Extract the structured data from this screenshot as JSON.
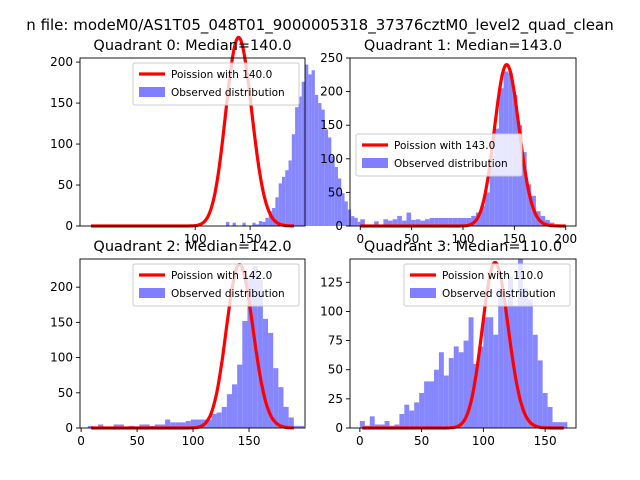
{
  "suptitle": "n file: modeM0/AS1T05_048T01_9000005318_37376cztM0_level2_quad_clean",
  "colors": {
    "poisson": "#ff0000",
    "observed": "#7f7fff"
  },
  "chart_data": [
    {
      "type": "bar",
      "title": "Quadrant 0: Median=140.0",
      "legend": [
        "Poission with 140.0",
        "Observed distribution"
      ],
      "legend_placement": "top-right",
      "xlim": [
        -5,
        200
      ],
      "ylim": [
        0,
        205
      ],
      "xticks": [
        100,
        150
      ],
      "yticks": [
        0,
        50,
        100,
        150,
        200
      ],
      "poisson_mu": 140,
      "poisson_peak": 230,
      "histogram": {
        "bin_start": 65,
        "bin_width": 3,
        "counts": [
          0,
          0,
          0,
          0,
          0,
          0,
          0,
          0,
          0,
          0,
          0,
          0,
          0,
          0,
          0,
          0,
          0,
          0,
          0,
          0,
          0,
          5,
          0,
          4,
          0,
          0,
          4,
          0,
          0,
          4,
          2,
          6,
          5,
          10,
          18,
          22,
          35,
          52,
          60,
          68,
          80,
          112,
          145,
          158,
          176,
          197,
          185,
          190,
          160,
          150,
          142,
          118,
          108,
          85,
          72,
          58,
          40,
          30,
          20,
          12,
          10,
          5,
          2,
          0,
          0,
          0,
          0,
          0,
          0,
          0,
          0,
          0,
          0,
          0,
          0,
          0,
          0
        ]
      }
    },
    {
      "type": "bar",
      "title": "Quadrant 1: Median=143.0",
      "legend": [
        "Poission with 143.0",
        "Observed distribution"
      ],
      "legend_placement": "center-left",
      "xlim": [
        -10,
        210
      ],
      "ylim": [
        0,
        250
      ],
      "xticks": [
        0,
        50,
        100,
        150,
        200
      ],
      "yticks": [
        0,
        50,
        100,
        150,
        200,
        250
      ],
      "poisson_mu": 143,
      "poisson_peak": 240,
      "histogram": {
        "bin_start": 0,
        "bin_width": 4.5,
        "counts": [
          10,
          2,
          0,
          7,
          2,
          10,
          8,
          10,
          15,
          8,
          20,
          9,
          10,
          8,
          10,
          12,
          12,
          12,
          12,
          12,
          12,
          12,
          12,
          12,
          15,
          20,
          30,
          50,
          90,
          145,
          205,
          230,
          228,
          195,
          150,
          110,
          62,
          45,
          22,
          15,
          9,
          5,
          0,
          0
        ]
      }
    },
    {
      "type": "bar",
      "title": "Quadrant 2: Median=142.0",
      "legend": [
        "Poission with 142.0",
        "Observed distribution"
      ],
      "legend_placement": "top-right",
      "xlim": [
        -1,
        200
      ],
      "ylim": [
        0,
        240
      ],
      "xticks": [
        0,
        50,
        100,
        150
      ],
      "yticks": [
        0,
        50,
        100,
        150,
        200
      ],
      "poisson_mu": 142,
      "poisson_peak": 232,
      "histogram": {
        "bin_start": 6,
        "bin_width": 4.6,
        "counts": [
          3,
          2,
          5,
          2,
          2,
          5,
          5,
          2,
          3,
          2,
          5,
          5,
          3,
          5,
          5,
          12,
          8,
          8,
          8,
          10,
          12,
          12,
          12,
          12,
          20,
          22,
          30,
          48,
          62,
          90,
          152,
          215,
          230,
          210,
          155,
          135,
          85,
          58,
          30,
          15,
          3,
          3
        ]
      }
    },
    {
      "type": "bar",
      "title": "Quadrant 3: Median=110.0",
      "legend": [
        "Poission with 110.0",
        "Observed distribution"
      ],
      "legend_placement": "top-right",
      "xlim": [
        -8,
        175
      ],
      "ylim": [
        0,
        145
      ],
      "xticks": [
        0,
        50,
        100,
        150
      ],
      "yticks": [
        0,
        25,
        50,
        75,
        100,
        125
      ],
      "poisson_mu": 110,
      "poisson_peak": 142,
      "histogram": {
        "bin_start": 0,
        "bin_width": 4,
        "counts": [
          6,
          2,
          10,
          3,
          3,
          6,
          2,
          3,
          12,
          20,
          15,
          22,
          30,
          40,
          40,
          50,
          65,
          45,
          60,
          70,
          65,
          75,
          95,
          55,
          70,
          95,
          95,
          80,
          120,
          105,
          130,
          105,
          145,
          120,
          110,
          80,
          58,
          30,
          18,
          5,
          5,
          5
        ]
      }
    }
  ]
}
